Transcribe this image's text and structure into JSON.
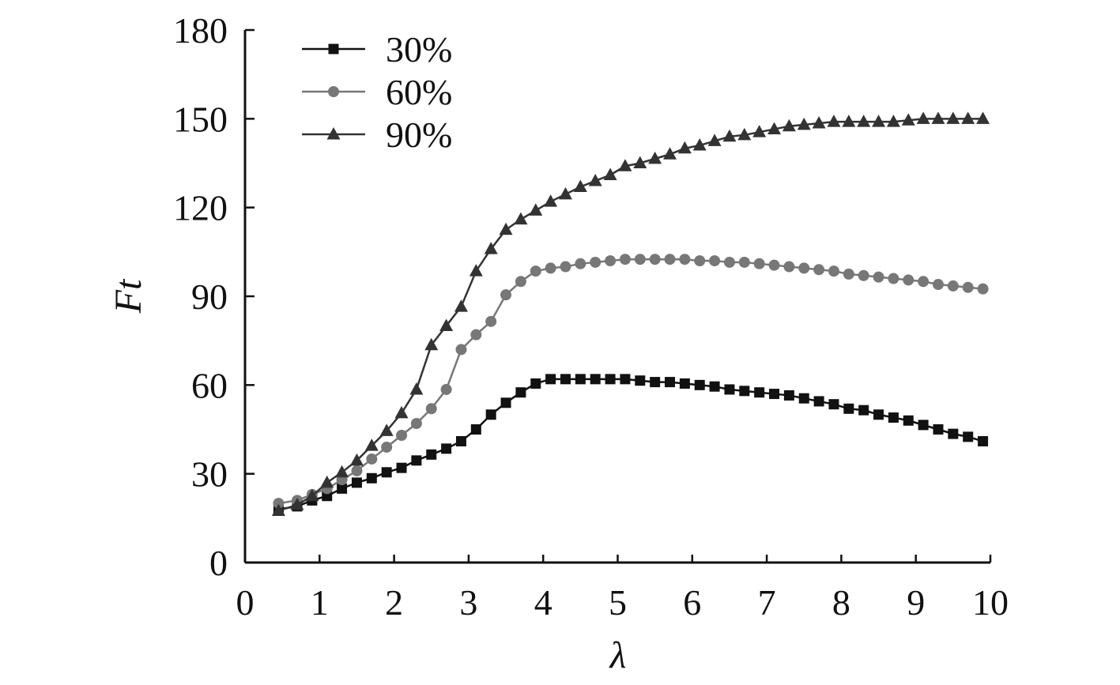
{
  "chart_data": {
    "type": "line",
    "xlabel": "λ",
    "ylabel": "Ft",
    "xlim": [
      0,
      10
    ],
    "ylim": [
      0,
      180
    ],
    "xticks": [
      "0",
      "1",
      "2",
      "3",
      "4",
      "5",
      "6",
      "7",
      "8",
      "9",
      "10"
    ],
    "yticks": [
      "0",
      "30",
      "60",
      "90",
      "120",
      "150",
      "180"
    ],
    "grid": false,
    "legend_position": "top-left",
    "x": [
      0.45,
      0.7,
      0.9,
      1.1,
      1.3,
      1.5,
      1.7,
      1.9,
      2.1,
      2.3,
      2.5,
      2.7,
      2.9,
      3.1,
      3.3,
      3.5,
      3.7,
      3.9,
      4.1,
      4.3,
      4.5,
      4.7,
      4.9,
      5.1,
      5.3,
      5.5,
      5.7,
      5.9,
      6.1,
      6.3,
      6.5,
      6.7,
      6.9,
      7.1,
      7.3,
      7.5,
      7.7,
      7.9,
      8.1,
      8.3,
      8.5,
      8.7,
      8.9,
      9.1,
      9.3,
      9.5,
      9.7,
      9.9
    ],
    "series": [
      {
        "name": "30%",
        "marker": "square",
        "color": "#111111",
        "values": [
          18,
          19,
          21,
          22.5,
          25,
          27,
          28.5,
          30.5,
          32,
          34.5,
          36.5,
          38.5,
          41,
          45,
          50,
          54,
          57.5,
          60.5,
          62,
          62,
          62,
          62,
          62,
          62,
          61.5,
          61,
          61,
          60.5,
          60,
          59.5,
          58.5,
          58,
          57.5,
          57,
          56.5,
          55.5,
          54.5,
          53.5,
          52,
          51.5,
          50,
          49,
          48,
          46.5,
          45,
          43.5,
          42.5,
          41
        ]
      },
      {
        "name": "60%",
        "marker": "circle",
        "color": "#777777",
        "values": [
          20,
          21,
          23,
          25,
          28,
          31,
          35,
          39,
          43,
          47,
          52,
          58.5,
          72,
          77,
          81.5,
          90.5,
          95,
          98.5,
          99.5,
          100,
          101,
          101.5,
          102,
          102.5,
          102.5,
          102.5,
          102.5,
          102.5,
          102,
          102,
          101.5,
          101.5,
          101,
          100.5,
          100,
          99.5,
          99,
          98.5,
          97.5,
          97,
          96.5,
          96,
          95.5,
          95,
          94,
          93.5,
          93,
          92.5
        ]
      },
      {
        "name": "90%",
        "marker": "triangle",
        "color": "#333333",
        "values": [
          17.5,
          19.5,
          22.5,
          27,
          30.5,
          34.5,
          39.5,
          44.5,
          50.5,
          58.5,
          73.5,
          80,
          86.5,
          98.5,
          106,
          112.5,
          116,
          119,
          122,
          124.5,
          127,
          129,
          131,
          134,
          135,
          136.5,
          138,
          140,
          141,
          142.5,
          144,
          144.5,
          145.5,
          146.5,
          147.5,
          148,
          148.5,
          149,
          149,
          149,
          149,
          149,
          149.5,
          150,
          150,
          150,
          150,
          150
        ]
      }
    ]
  }
}
